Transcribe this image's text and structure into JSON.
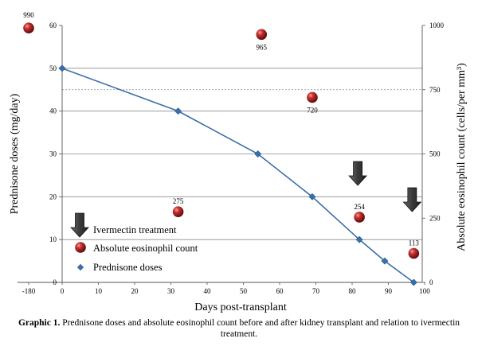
{
  "chart_data": {
    "type": "line",
    "xlabel": "Days post-transplant",
    "ylabel_left": "Prednisone doses (mg/day)",
    "ylabel_right": "Absolute eosinophil count (cells/per mm³)",
    "x_ticks": [
      "-180",
      "0",
      "10",
      "20",
      "30",
      "40",
      "50",
      "60",
      "70",
      "80",
      "90",
      "100"
    ],
    "x_tick_values": [
      -180,
      0,
      10,
      20,
      30,
      40,
      50,
      60,
      70,
      80,
      90,
      100
    ],
    "ylim_left": [
      0,
      60
    ],
    "y_ticks_left": [
      "0",
      "10",
      "20",
      "30",
      "40",
      "50",
      "60"
    ],
    "ylim_right": [
      0,
      1000
    ],
    "y_ticks_right": [
      "0",
      "250",
      "500",
      "750",
      "1000"
    ],
    "grid": true,
    "series": [
      {
        "name": "Prednisone doses",
        "axis": "left",
        "marker": "diamond",
        "color": "#3a6ea8",
        "x": [
          0,
          32,
          54,
          69,
          82,
          89,
          97
        ],
        "y": [
          50,
          40,
          30,
          20,
          10,
          5,
          0
        ]
      },
      {
        "name": "Absolute eosinophil count",
        "axis": "right",
        "marker": "sphere",
        "color": "#a3191a",
        "x": [
          -180,
          32,
          55,
          69,
          82,
          97
        ],
        "y": [
          990,
          275,
          965,
          720,
          254,
          113
        ],
        "labels": [
          "990",
          "275",
          "965",
          "720",
          "254",
          "113"
        ]
      }
    ],
    "ivermectin_treatment_days": [
      82,
      97
    ],
    "legend": {
      "placement": "bottom-left",
      "items": [
        "Ivermectin treatment",
        "Absolute eosinophil count",
        "Prednisone doses"
      ]
    }
  },
  "caption": {
    "label": "Graphic 1.",
    "text": " Prednisone doses and absolute eosinophil count before and after kidney transplant and relation to ivermectin treatment."
  }
}
